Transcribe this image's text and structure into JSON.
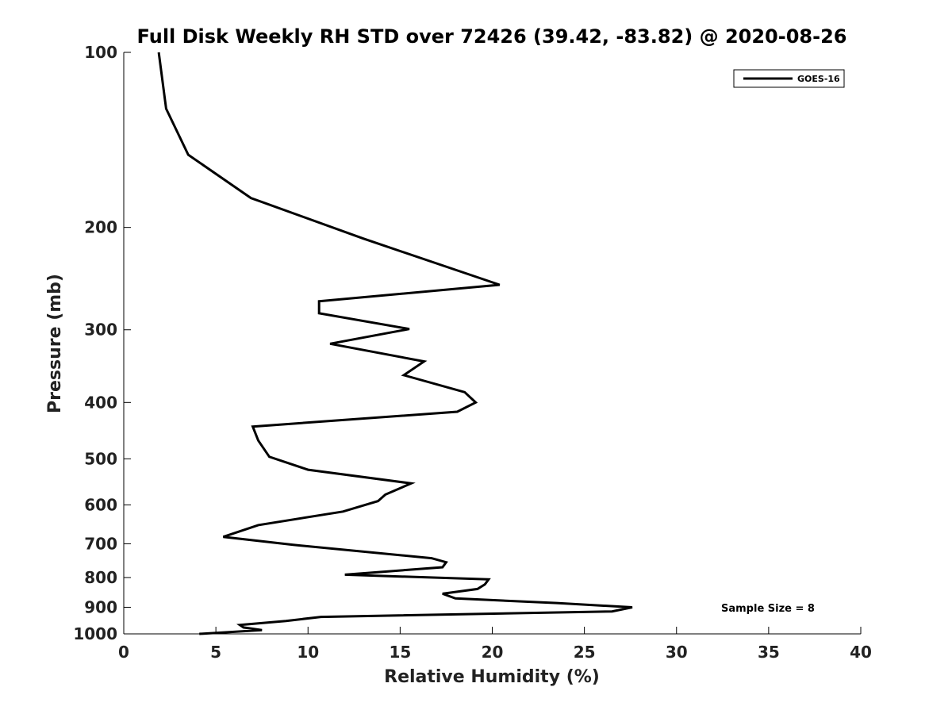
{
  "chart_data": {
    "type": "line",
    "title": "Full Disk Weekly RH STD over 72426 (39.42, -83.82) @ 2020-08-26",
    "xlabel": "Relative Humidity (%)",
    "ylabel": "Pressure (mb)",
    "xlim": [
      0,
      40
    ],
    "ylim": [
      1000,
      100
    ],
    "y_scale": "log",
    "x_ticks": [
      "0",
      "5",
      "10",
      "15",
      "20",
      "25",
      "30",
      "35",
      "40"
    ],
    "y_ticks": [
      "100",
      "200",
      "300",
      "400",
      "500",
      "600",
      "700",
      "800",
      "900",
      "1000"
    ],
    "grid": false,
    "legend_position": "top-right",
    "annotation": "Sample Size = 8",
    "series": [
      {
        "name": "GOES-16",
        "color": "#000000",
        "points": [
          [
            1.9,
            100
          ],
          [
            2.3,
            125
          ],
          [
            3.5,
            150
          ],
          [
            6.9,
            178
          ],
          [
            13.0,
            209
          ],
          [
            20.4,
            251
          ],
          [
            10.6,
            268
          ],
          [
            10.6,
            281
          ],
          [
            15.5,
            299
          ],
          [
            11.2,
            317
          ],
          [
            16.3,
            340
          ],
          [
            15.2,
            359
          ],
          [
            18.5,
            384
          ],
          [
            19.1,
            400
          ],
          [
            18.1,
            415
          ],
          [
            7.0,
            440
          ],
          [
            7.3,
            465
          ],
          [
            7.9,
            496
          ],
          [
            10.0,
            522
          ],
          [
            15.6,
            551
          ],
          [
            14.2,
            576
          ],
          [
            13.8,
            591
          ],
          [
            11.9,
            616
          ],
          [
            7.3,
            650
          ],
          [
            5.4,
            681
          ],
          [
            9.2,
            703
          ],
          [
            16.7,
            741
          ],
          [
            17.5,
            753
          ],
          [
            17.3,
            768
          ],
          [
            12.0,
            791
          ],
          [
            19.8,
            806
          ],
          [
            19.6,
            822
          ],
          [
            19.2,
            837
          ],
          [
            17.3,
            853
          ],
          [
            18.0,
            869
          ],
          [
            23.5,
            885
          ],
          [
            27.6,
            900
          ],
          [
            26.5,
            915
          ],
          [
            10.7,
            935
          ],
          [
            8.8,
            950
          ],
          [
            6.3,
            965
          ],
          [
            6.5,
            975
          ],
          [
            7.5,
            985
          ],
          [
            4.1,
            1000
          ]
        ]
      }
    ]
  }
}
